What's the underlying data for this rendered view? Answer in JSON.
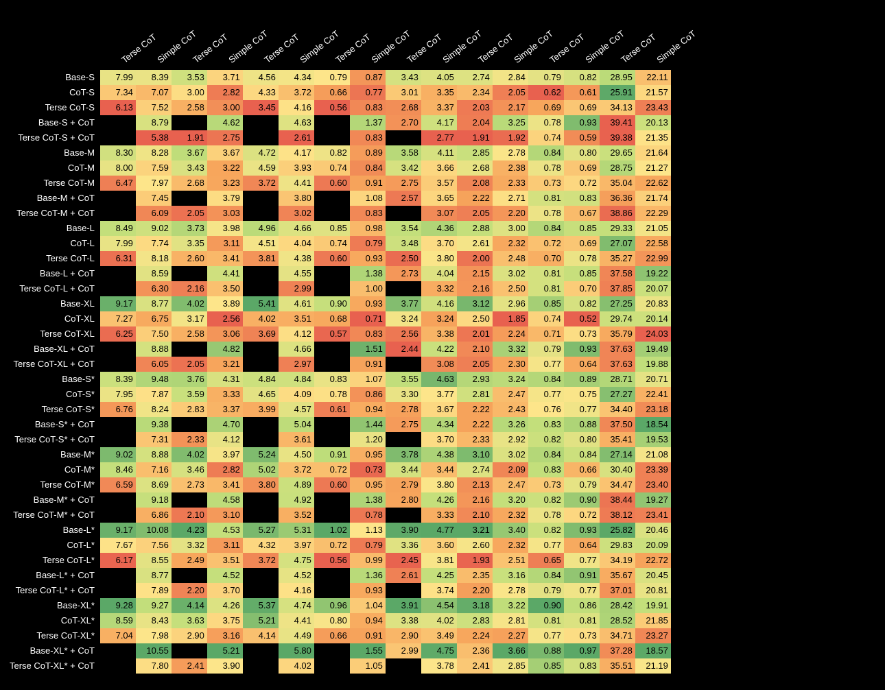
{
  "columns": [
    "Terse CoT",
    "Simple CoT",
    "Terse CoT",
    "Simple CoT",
    "Terse CoT",
    "Simple CoT",
    "Terse CoT",
    "Simple CoT",
    "Terse CoT",
    "Simple CoT",
    "Terse CoT",
    "Simple CoT",
    "Terse CoT",
    "Simple CoT",
    "Terse CoT",
    "Simple CoT"
  ],
  "rows": [
    {
      "label": "Base-S",
      "v": [
        7.99,
        8.39,
        3.53,
        3.71,
        4.56,
        4.34,
        0.79,
        0.87,
        3.43,
        4.05,
        2.74,
        2.84,
        0.79,
        0.82,
        28.95,
        22.11
      ]
    },
    {
      "label": "CoT-S",
      "v": [
        7.34,
        7.07,
        3.0,
        2.82,
        4.33,
        3.72,
        0.66,
        0.77,
        3.01,
        3.35,
        2.34,
        2.05,
        0.62,
        0.61,
        25.91,
        21.57
      ]
    },
    {
      "label": "Terse  CoT-S",
      "v": [
        6.13,
        7.52,
        2.58,
        3.0,
        3.45,
        4.16,
        0.56,
        0.83,
        2.68,
        3.37,
        2.03,
        2.17,
        0.69,
        0.69,
        34.13,
        23.43
      ]
    },
    {
      "label": "Base-S + CoT",
      "v": [
        null,
        8.79,
        null,
        4.62,
        null,
        4.63,
        null,
        1.37,
        2.7,
        4.17,
        2.04,
        3.25,
        0.78,
        0.93,
        39.41,
        20.13
      ]
    },
    {
      "label": "Terse  CoT-S + CoT",
      "v": [
        null,
        5.38,
        1.91,
        2.75,
        null,
        2.61,
        null,
        0.83,
        null,
        2.77,
        1.91,
        1.92,
        0.74,
        0.59,
        39.38,
        21.35
      ]
    },
    {
      "label": "Base-M",
      "v": [
        8.3,
        8.28,
        3.67,
        3.67,
        4.72,
        4.17,
        0.82,
        0.89,
        3.58,
        4.11,
        2.85,
        2.78,
        0.84,
        0.8,
        29.65,
        21.64
      ]
    },
    {
      "label": "CoT-M",
      "v": [
        8.0,
        7.59,
        3.43,
        3.22,
        4.59,
        3.93,
        0.74,
        0.84,
        3.42,
        3.66,
        2.68,
        2.38,
        0.78,
        0.69,
        28.75,
        21.27
      ]
    },
    {
      "label": "Terse  CoT-M",
      "v": [
        6.47,
        7.97,
        2.68,
        3.23,
        3.72,
        4.41,
        0.6,
        0.91,
        2.75,
        3.57,
        2.08,
        2.33,
        0.73,
        0.72,
        35.04,
        22.62
      ]
    },
    {
      "label": "Base-M + CoT",
      "v": [
        null,
        7.45,
        null,
        3.79,
        null,
        3.8,
        null,
        1.08,
        2.57,
        3.65,
        2.22,
        2.71,
        0.81,
        0.83,
        36.36,
        21.74
      ]
    },
    {
      "label": "Terse  CoT-M + CoT",
      "v": [
        null,
        6.09,
        2.05,
        3.03,
        null,
        3.02,
        null,
        0.83,
        null,
        3.07,
        2.05,
        2.2,
        0.78,
        0.67,
        38.86,
        22.29
      ]
    },
    {
      "label": "Base-L",
      "v": [
        8.49,
        9.02,
        3.73,
        3.98,
        4.96,
        4.66,
        0.85,
        0.98,
        3.54,
        4.36,
        2.88,
        3.0,
        0.84,
        0.85,
        29.33,
        21.05
      ]
    },
    {
      "label": "CoT-L",
      "v": [
        7.99,
        7.74,
        3.35,
        3.11,
        4.51,
        4.04,
        0.74,
        0.79,
        3.48,
        3.7,
        2.61,
        2.32,
        0.72,
        0.69,
        27.07,
        22.58
      ]
    },
    {
      "label": "Terse  CoT-L",
      "v": [
        6.31,
        8.18,
        2.6,
        3.41,
        3.81,
        4.38,
        0.6,
        0.93,
        2.5,
        3.8,
        2.0,
        2.48,
        0.7,
        0.78,
        35.27,
        22.99
      ]
    },
    {
      "label": "Base-L + CoT",
      "v": [
        null,
        8.59,
        null,
        4.41,
        null,
        4.55,
        null,
        1.38,
        2.73,
        4.04,
        2.15,
        3.02,
        0.81,
        0.85,
        37.58,
        19.22
      ]
    },
    {
      "label": "Terse  CoT-L + CoT",
      "v": [
        null,
        6.3,
        2.16,
        3.5,
        null,
        2.99,
        null,
        1.0,
        null,
        3.32,
        2.16,
        2.5,
        0.81,
        0.7,
        37.85,
        20.07
      ]
    },
    {
      "label": "Base-XL",
      "v": [
        9.17,
        8.77,
        4.02,
        3.89,
        5.41,
        4.61,
        0.9,
        0.93,
        3.77,
        4.16,
        3.12,
        2.96,
        0.85,
        0.82,
        27.25,
        20.83
      ]
    },
    {
      "label": "CoT-XL",
      "v": [
        7.27,
        6.75,
        3.17,
        2.56,
        4.02,
        3.51,
        0.68,
        0.71,
        3.24,
        3.24,
        2.5,
        1.85,
        0.74,
        0.52,
        29.74,
        20.14
      ]
    },
    {
      "label": "Terse  CoT-XL",
      "v": [
        6.25,
        7.5,
        2.58,
        3.06,
        3.69,
        4.12,
        0.57,
        0.83,
        2.56,
        3.38,
        2.01,
        2.24,
        0.71,
        0.73,
        35.79,
        24.03
      ]
    },
    {
      "label": "Base-XL + CoT",
      "v": [
        null,
        8.88,
        null,
        4.82,
        null,
        4.66,
        null,
        1.51,
        2.44,
        4.22,
        2.1,
        3.32,
        0.79,
        0.93,
        37.63,
        19.49
      ]
    },
    {
      "label": "Terse  CoT-XL + CoT",
      "v": [
        null,
        6.05,
        2.05,
        3.21,
        null,
        2.97,
        null,
        0.91,
        null,
        3.08,
        2.05,
        2.3,
        0.77,
        0.64,
        37.63,
        19.88
      ]
    },
    {
      "label": "Base-S*",
      "v": [
        8.39,
        9.48,
        3.76,
        4.31,
        4.84,
        4.84,
        0.83,
        1.07,
        3.55,
        4.63,
        2.93,
        3.24,
        0.84,
        0.89,
        28.71,
        20.71
      ]
    },
    {
      "label": "CoT-S*",
      "v": [
        7.95,
        7.87,
        3.59,
        3.33,
        4.65,
        4.09,
        0.78,
        0.86,
        3.3,
        3.77,
        2.81,
        2.47,
        0.77,
        0.75,
        27.27,
        22.41
      ]
    },
    {
      "label": "Terse  CoT-S*",
      "v": [
        6.76,
        8.24,
        2.83,
        3.37,
        3.99,
        4.57,
        0.61,
        0.94,
        2.78,
        3.67,
        2.22,
        2.43,
        0.76,
        0.77,
        34.4,
        23.18
      ]
    },
    {
      "label": "Base-S* + CoT",
      "v": [
        null,
        9.38,
        null,
        4.7,
        null,
        5.04,
        null,
        1.44,
        2.75,
        4.34,
        2.22,
        3.26,
        0.83,
        0.88,
        37.5,
        18.54
      ]
    },
    {
      "label": "Terse  CoT-S* + CoT",
      "v": [
        null,
        7.31,
        2.33,
        4.12,
        null,
        3.61,
        null,
        1.2,
        null,
        3.7,
        2.33,
        2.92,
        0.82,
        0.8,
        35.41,
        19.53
      ]
    },
    {
      "label": "Base-M*",
      "v": [
        9.02,
        8.88,
        4.02,
        3.97,
        5.24,
        4.5,
        0.91,
        0.95,
        3.78,
        4.38,
        3.1,
        3.02,
        0.84,
        0.84,
        27.14,
        21.08
      ]
    },
    {
      "label": "CoT-M*",
      "v": [
        8.46,
        7.16,
        3.46,
        2.82,
        5.02,
        3.72,
        0.72,
        0.73,
        3.44,
        3.44,
        2.74,
        2.09,
        0.83,
        0.66,
        30.4,
        23.39
      ]
    },
    {
      "label": "Terse  CoT-M*",
      "v": [
        6.59,
        8.69,
        2.73,
        3.41,
        3.8,
        4.89,
        0.6,
        0.95,
        2.79,
        3.8,
        2.13,
        2.47,
        0.73,
        0.79,
        34.47,
        23.4
      ]
    },
    {
      "label": "Base-M* + CoT",
      "v": [
        null,
        9.18,
        null,
        4.58,
        null,
        4.92,
        null,
        1.38,
        2.8,
        4.26,
        2.16,
        3.2,
        0.82,
        0.9,
        38.44,
        19.27
      ]
    },
    {
      "label": "Terse  CoT-M* + CoT",
      "v": [
        null,
        6.86,
        2.1,
        3.1,
        null,
        3.52,
        null,
        0.78,
        null,
        3.33,
        2.1,
        2.32,
        0.78,
        0.72,
        38.12,
        23.41
      ]
    },
    {
      "label": "Base-L*",
      "v": [
        9.17,
        10.08,
        4.23,
        4.53,
        5.27,
        5.31,
        1.02,
        1.13,
        3.9,
        4.77,
        3.21,
        3.4,
        0.82,
        0.93,
        25.82,
        20.46
      ]
    },
    {
      "label": "CoT-L*",
      "v": [
        7.67,
        7.56,
        3.32,
        3.11,
        4.32,
        3.97,
        0.72,
        0.79,
        3.36,
        3.6,
        2.6,
        2.32,
        0.77,
        0.64,
        29.83,
        20.09
      ]
    },
    {
      "label": "Terse  CoT-L*",
      "v": [
        6.17,
        8.55,
        2.49,
        3.51,
        3.72,
        4.75,
        0.56,
        0.99,
        2.45,
        3.81,
        1.93,
        2.51,
        0.65,
        0.77,
        34.19,
        22.72
      ]
    },
    {
      "label": "Base-L* + CoT",
      "v": [
        null,
        8.77,
        null,
        4.52,
        null,
        4.52,
        null,
        1.36,
        2.61,
        4.25,
        2.35,
        3.16,
        0.84,
        0.91,
        35.67,
        20.45
      ]
    },
    {
      "label": "Terse  CoT-L* + CoT",
      "v": [
        null,
        7.89,
        2.2,
        3.7,
        null,
        4.16,
        null,
        0.93,
        null,
        3.74,
        2.2,
        2.78,
        0.79,
        0.77,
        37.01,
        20.81
      ]
    },
    {
      "label": "Base-XL*",
      "v": [
        9.28,
        9.27,
        4.14,
        4.26,
        5.37,
        4.74,
        0.96,
        1.04,
        3.91,
        4.54,
        3.18,
        3.22,
        0.9,
        0.86,
        28.42,
        19.91
      ]
    },
    {
      "label": "CoT-XL*",
      "v": [
        8.59,
        8.43,
        3.63,
        3.75,
        5.21,
        4.41,
        0.8,
        0.94,
        3.38,
        4.02,
        2.83,
        2.81,
        0.81,
        0.81,
        28.52,
        21.85
      ]
    },
    {
      "label": "Terse  CoT-XL*",
      "v": [
        7.04,
        7.98,
        2.9,
        3.16,
        4.14,
        4.49,
        0.66,
        0.91,
        2.9,
        3.49,
        2.24,
        2.27,
        0.77,
        0.73,
        34.71,
        23.27
      ]
    },
    {
      "label": "Base-XL* + CoT",
      "v": [
        null,
        10.55,
        null,
        5.21,
        null,
        5.8,
        null,
        1.55,
        2.99,
        4.75,
        2.36,
        3.66,
        0.88,
        0.97,
        37.28,
        18.57
      ]
    },
    {
      "label": "Terse  CoT-XL* + CoT",
      "v": [
        null,
        7.8,
        2.41,
        3.9,
        null,
        4.02,
        null,
        1.05,
        null,
        3.78,
        2.41,
        2.85,
        0.85,
        0.83,
        35.51,
        21.19
      ]
    }
  ],
  "palette": {
    "stops": [
      {
        "t": 0.0,
        "c": "#e8614f"
      },
      {
        "t": 0.25,
        "c": "#f7a65c"
      },
      {
        "t": 0.5,
        "c": "#fde58a"
      },
      {
        "t": 0.75,
        "c": "#c3df7b"
      },
      {
        "t": 1.0,
        "c": "#5ba867"
      }
    ]
  },
  "invertColumns": [
    14,
    15
  ]
}
